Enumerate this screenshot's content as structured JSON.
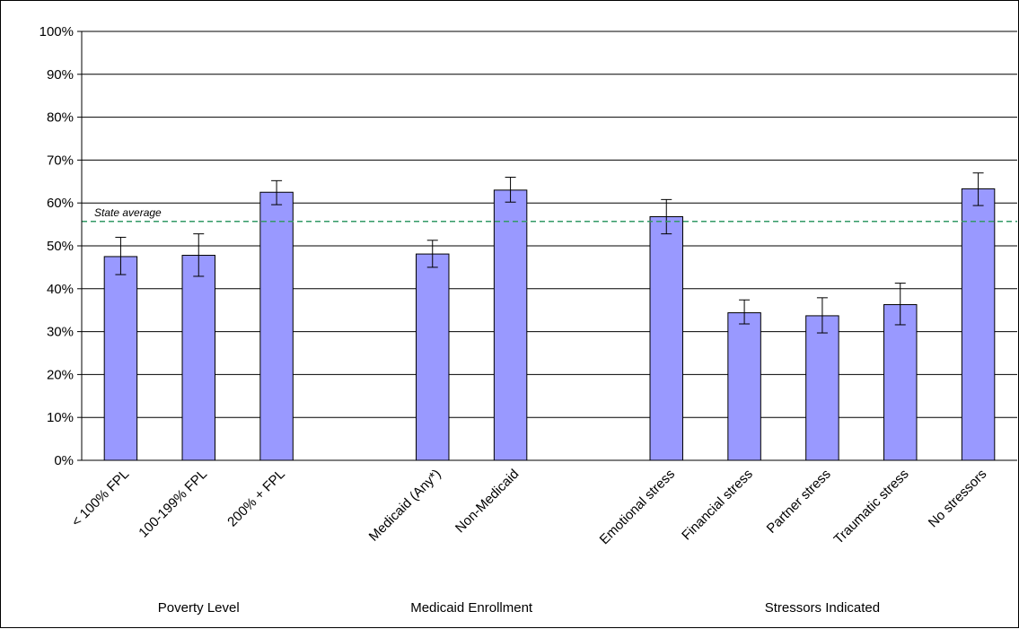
{
  "chart_data": {
    "type": "bar",
    "title": "",
    "xlabel": "",
    "ylabel": "",
    "ylim": [
      0,
      100
    ],
    "y_ticks": [
      "0%",
      "10%",
      "20%",
      "30%",
      "40%",
      "50%",
      "60%",
      "70%",
      "80%",
      "90%",
      "100%"
    ],
    "grid": true,
    "legend": "none",
    "colors": {
      "bar_fill": "#9999ff",
      "bar_stroke": "#000000",
      "reference_line": "#339966",
      "gridline": "#000000"
    },
    "reference_line": {
      "label": "State average",
      "value": 55.7
    },
    "groups": [
      {
        "label": "Poverty Level",
        "categories": [
          {
            "label": "< 100% FPL",
            "value": 47.5,
            "error_low": 43.3,
            "error_high": 52.0
          },
          {
            "label": "100-199% FPL",
            "value": 47.8,
            "error_low": 42.9,
            "error_high": 52.8
          },
          {
            "label": "200% + FPL",
            "value": 62.5,
            "error_low": 59.6,
            "error_high": 65.2
          }
        ]
      },
      {
        "label": "Medicaid Enrollment",
        "categories": [
          {
            "label": "Medicaid (Any*)",
            "value": 48.1,
            "error_low": 45.0,
            "error_high": 51.3
          },
          {
            "label": "Non-Medicaid",
            "value": 63.0,
            "error_low": 60.2,
            "error_high": 66.0
          }
        ]
      },
      {
        "label": "Stressors Indicated",
        "categories": [
          {
            "label": "Emotional stress",
            "value": 56.8,
            "error_low": 52.8,
            "error_high": 60.8
          },
          {
            "label": "Financial stress",
            "value": 34.4,
            "error_low": 31.8,
            "error_high": 37.4
          },
          {
            "label": "Partner stress",
            "value": 33.7,
            "error_low": 29.7,
            "error_high": 37.9
          },
          {
            "label": "Traumatic stress",
            "value": 36.3,
            "error_low": 31.6,
            "error_high": 41.3
          },
          {
            "label": "No stressors",
            "value": 63.3,
            "error_low": 59.4,
            "error_high": 67.0
          }
        ]
      }
    ]
  }
}
